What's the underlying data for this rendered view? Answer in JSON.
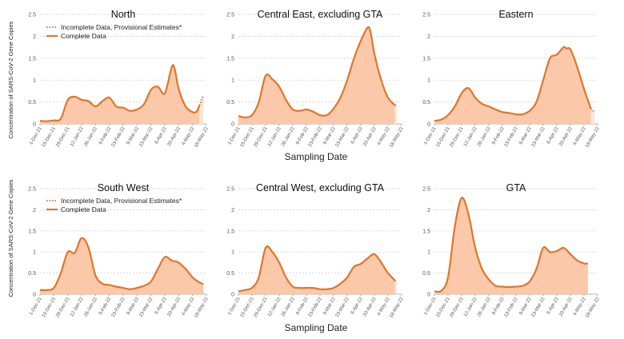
{
  "chart_data": {
    "type": "area",
    "y_axis_label": "Concentration of SARS-CoV-2 Gene Copies",
    "x_axis_label": "Sampling Date",
    "x_ticks": [
      "1-Dec-21",
      "15-Dec-21",
      "29-Dec-21",
      "12-Jan-22",
      "26-Jan-22",
      "9-Feb-22",
      "23-Feb-22",
      "9-Mar-22",
      "23-Mar-22",
      "6-Apr-22",
      "20-Apr-22",
      "4-May-22",
      "18-May-22"
    ],
    "y_ticks": [
      0,
      0.5,
      1,
      1.5,
      2,
      2.5
    ],
    "ylim": [
      0,
      2.5
    ],
    "grid": true,
    "legend": {
      "incomplete": "Incomplete Data, Provisional Estimates*",
      "complete": "Complete Data",
      "placement": "top-left"
    },
    "colors": {
      "line": "#e0762a",
      "fill": "#fbc9a9",
      "fill_pale": "#fde6d6"
    },
    "panels": [
      {
        "title": "North",
        "show_legend": true,
        "complete": [
          [
            "1-Dec-21",
            0.07
          ],
          [
            "8-Dec-21",
            0.06
          ],
          [
            "15-Dec-21",
            0.08
          ],
          [
            "22-Dec-21",
            0.12
          ],
          [
            "29-Dec-21",
            0.55
          ],
          [
            "5-Jan-22",
            0.62
          ],
          [
            "12-Jan-22",
            0.55
          ],
          [
            "19-Jan-22",
            0.52
          ],
          [
            "26-Jan-22",
            0.4
          ],
          [
            "2-Feb-22",
            0.52
          ],
          [
            "9-Feb-22",
            0.6
          ],
          [
            "16-Feb-22",
            0.4
          ],
          [
            "23-Feb-22",
            0.37
          ],
          [
            "2-Mar-22",
            0.3
          ],
          [
            "9-Mar-22",
            0.33
          ],
          [
            "16-Mar-22",
            0.45
          ],
          [
            "23-Mar-22",
            0.78
          ],
          [
            "30-Mar-22",
            0.85
          ],
          [
            "6-Apr-22",
            0.7
          ],
          [
            "13-Apr-22",
            1.3
          ],
          [
            "16-Apr-22",
            1.25
          ],
          [
            "20-Apr-22",
            0.8
          ],
          [
            "27-Apr-22",
            0.4
          ],
          [
            "4-May-22",
            0.27
          ],
          [
            "8-May-22",
            0.28
          ],
          [
            "11-May-22",
            0.42
          ]
        ],
        "incomplete": [
          [
            "11-May-22",
            0.42
          ],
          [
            "13-May-22",
            0.55
          ],
          [
            "15-May-22",
            0.65
          ]
        ]
      },
      {
        "title": "Central East, excluding GTA",
        "show_legend": false,
        "complete": [
          [
            "1-Dec-21",
            0.18
          ],
          [
            "8-Dec-21",
            0.15
          ],
          [
            "15-Dec-21",
            0.2
          ],
          [
            "22-Dec-21",
            0.5
          ],
          [
            "29-Dec-21",
            1.1
          ],
          [
            "5-Jan-22",
            1.02
          ],
          [
            "12-Jan-22",
            0.85
          ],
          [
            "19-Jan-22",
            0.55
          ],
          [
            "26-Jan-22",
            0.33
          ],
          [
            "2-Feb-22",
            0.3
          ],
          [
            "9-Feb-22",
            0.33
          ],
          [
            "16-Feb-22",
            0.28
          ],
          [
            "23-Feb-22",
            0.2
          ],
          [
            "2-Mar-22",
            0.2
          ],
          [
            "9-Mar-22",
            0.35
          ],
          [
            "16-Mar-22",
            0.6
          ],
          [
            "23-Mar-22",
            1.0
          ],
          [
            "30-Mar-22",
            1.5
          ],
          [
            "6-Apr-22",
            1.9
          ],
          [
            "13-Apr-22",
            2.2
          ],
          [
            "16-Apr-22",
            2.1
          ],
          [
            "20-Apr-22",
            1.6
          ],
          [
            "27-Apr-22",
            1.0
          ],
          [
            "4-May-22",
            0.6
          ],
          [
            "11-May-22",
            0.43
          ]
        ],
        "incomplete": [
          [
            "11-May-22",
            0.43
          ],
          [
            "13-May-22",
            0.41
          ]
        ]
      },
      {
        "title": "Eastern",
        "show_legend": false,
        "complete": [
          [
            "1-Dec-21",
            0.07
          ],
          [
            "8-Dec-21",
            0.1
          ],
          [
            "15-Dec-21",
            0.2
          ],
          [
            "22-Dec-21",
            0.4
          ],
          [
            "29-Dec-21",
            0.7
          ],
          [
            "5-Jan-22",
            0.82
          ],
          [
            "12-Jan-22",
            0.6
          ],
          [
            "19-Jan-22",
            0.46
          ],
          [
            "26-Jan-22",
            0.4
          ],
          [
            "2-Feb-22",
            0.33
          ],
          [
            "9-Feb-22",
            0.27
          ],
          [
            "16-Feb-22",
            0.25
          ],
          [
            "23-Feb-22",
            0.22
          ],
          [
            "2-Mar-22",
            0.22
          ],
          [
            "9-Mar-22",
            0.3
          ],
          [
            "16-Mar-22",
            0.5
          ],
          [
            "23-Mar-22",
            1.0
          ],
          [
            "30-Mar-22",
            1.5
          ],
          [
            "6-Apr-22",
            1.58
          ],
          [
            "13-Apr-22",
            1.75
          ],
          [
            "16-Apr-22",
            1.72
          ],
          [
            "20-Apr-22",
            1.7
          ],
          [
            "27-Apr-22",
            1.3
          ],
          [
            "4-May-22",
            0.8
          ],
          [
            "11-May-22",
            0.35
          ]
        ],
        "incomplete": [
          [
            "11-May-22",
            0.35
          ],
          [
            "15-May-22",
            0.27
          ]
        ]
      },
      {
        "title": "South West",
        "show_legend": true,
        "complete": [
          [
            "1-Dec-21",
            0.1
          ],
          [
            "8-Dec-21",
            0.1
          ],
          [
            "15-Dec-21",
            0.15
          ],
          [
            "22-Dec-21",
            0.5
          ],
          [
            "29-Dec-21",
            1.0
          ],
          [
            "5-Jan-22",
            0.98
          ],
          [
            "12-Jan-22",
            1.33
          ],
          [
            "19-Jan-22",
            1.1
          ],
          [
            "26-Jan-22",
            0.45
          ],
          [
            "2-Feb-22",
            0.25
          ],
          [
            "9-Feb-22",
            0.22
          ],
          [
            "16-Feb-22",
            0.18
          ],
          [
            "23-Feb-22",
            0.15
          ],
          [
            "2-Mar-22",
            0.12
          ],
          [
            "9-Mar-22",
            0.15
          ],
          [
            "16-Mar-22",
            0.2
          ],
          [
            "23-Mar-22",
            0.3
          ],
          [
            "30-Mar-22",
            0.6
          ],
          [
            "6-Apr-22",
            0.88
          ],
          [
            "13-Apr-22",
            0.8
          ],
          [
            "20-Apr-22",
            0.75
          ],
          [
            "27-Apr-22",
            0.6
          ],
          [
            "4-May-22",
            0.4
          ],
          [
            "11-May-22",
            0.28
          ],
          [
            "15-May-22",
            0.24
          ]
        ],
        "incomplete": []
      },
      {
        "title": "Central West, excluding GTA",
        "show_legend": false,
        "complete": [
          [
            "1-Dec-21",
            0.07
          ],
          [
            "8-Dec-21",
            0.1
          ],
          [
            "15-Dec-21",
            0.15
          ],
          [
            "22-Dec-21",
            0.4
          ],
          [
            "29-Dec-21",
            1.1
          ],
          [
            "5-Jan-22",
            1.0
          ],
          [
            "12-Jan-22",
            0.75
          ],
          [
            "19-Jan-22",
            0.4
          ],
          [
            "26-Jan-22",
            0.18
          ],
          [
            "2-Feb-22",
            0.15
          ],
          [
            "9-Feb-22",
            0.15
          ],
          [
            "16-Feb-22",
            0.15
          ],
          [
            "23-Feb-22",
            0.12
          ],
          [
            "2-Mar-22",
            0.12
          ],
          [
            "9-Mar-22",
            0.15
          ],
          [
            "16-Mar-22",
            0.25
          ],
          [
            "23-Mar-22",
            0.4
          ],
          [
            "30-Mar-22",
            0.65
          ],
          [
            "6-Apr-22",
            0.72
          ],
          [
            "13-Apr-22",
            0.85
          ],
          [
            "20-Apr-22",
            0.95
          ],
          [
            "27-Apr-22",
            0.75
          ],
          [
            "4-May-22",
            0.5
          ],
          [
            "11-May-22",
            0.33
          ]
        ],
        "incomplete": [
          [
            "11-May-22",
            0.33
          ],
          [
            "13-May-22",
            0.3
          ]
        ]
      },
      {
        "title": "GTA",
        "show_legend": false,
        "complete": [
          [
            "1-Dec-21",
            0.07
          ],
          [
            "8-Dec-21",
            0.08
          ],
          [
            "15-Dec-21",
            0.4
          ],
          [
            "22-Dec-21",
            1.6
          ],
          [
            "29-Dec-21",
            2.28
          ],
          [
            "5-Jan-22",
            1.9
          ],
          [
            "12-Jan-22",
            1.1
          ],
          [
            "19-Jan-22",
            0.6
          ],
          [
            "26-Jan-22",
            0.35
          ],
          [
            "2-Feb-22",
            0.2
          ],
          [
            "9-Feb-22",
            0.18
          ],
          [
            "16-Feb-22",
            0.17
          ],
          [
            "23-Feb-22",
            0.18
          ],
          [
            "2-Mar-22",
            0.2
          ],
          [
            "9-Mar-22",
            0.3
          ],
          [
            "16-Mar-22",
            0.6
          ],
          [
            "23-Mar-22",
            1.1
          ],
          [
            "30-Mar-22",
            1.0
          ],
          [
            "6-Apr-22",
            1.02
          ],
          [
            "13-Apr-22",
            1.1
          ],
          [
            "20-Apr-22",
            0.95
          ],
          [
            "27-Apr-22",
            0.8
          ],
          [
            "4-May-22",
            0.73
          ],
          [
            "8-May-22",
            0.73
          ]
        ],
        "incomplete": []
      }
    ]
  }
}
